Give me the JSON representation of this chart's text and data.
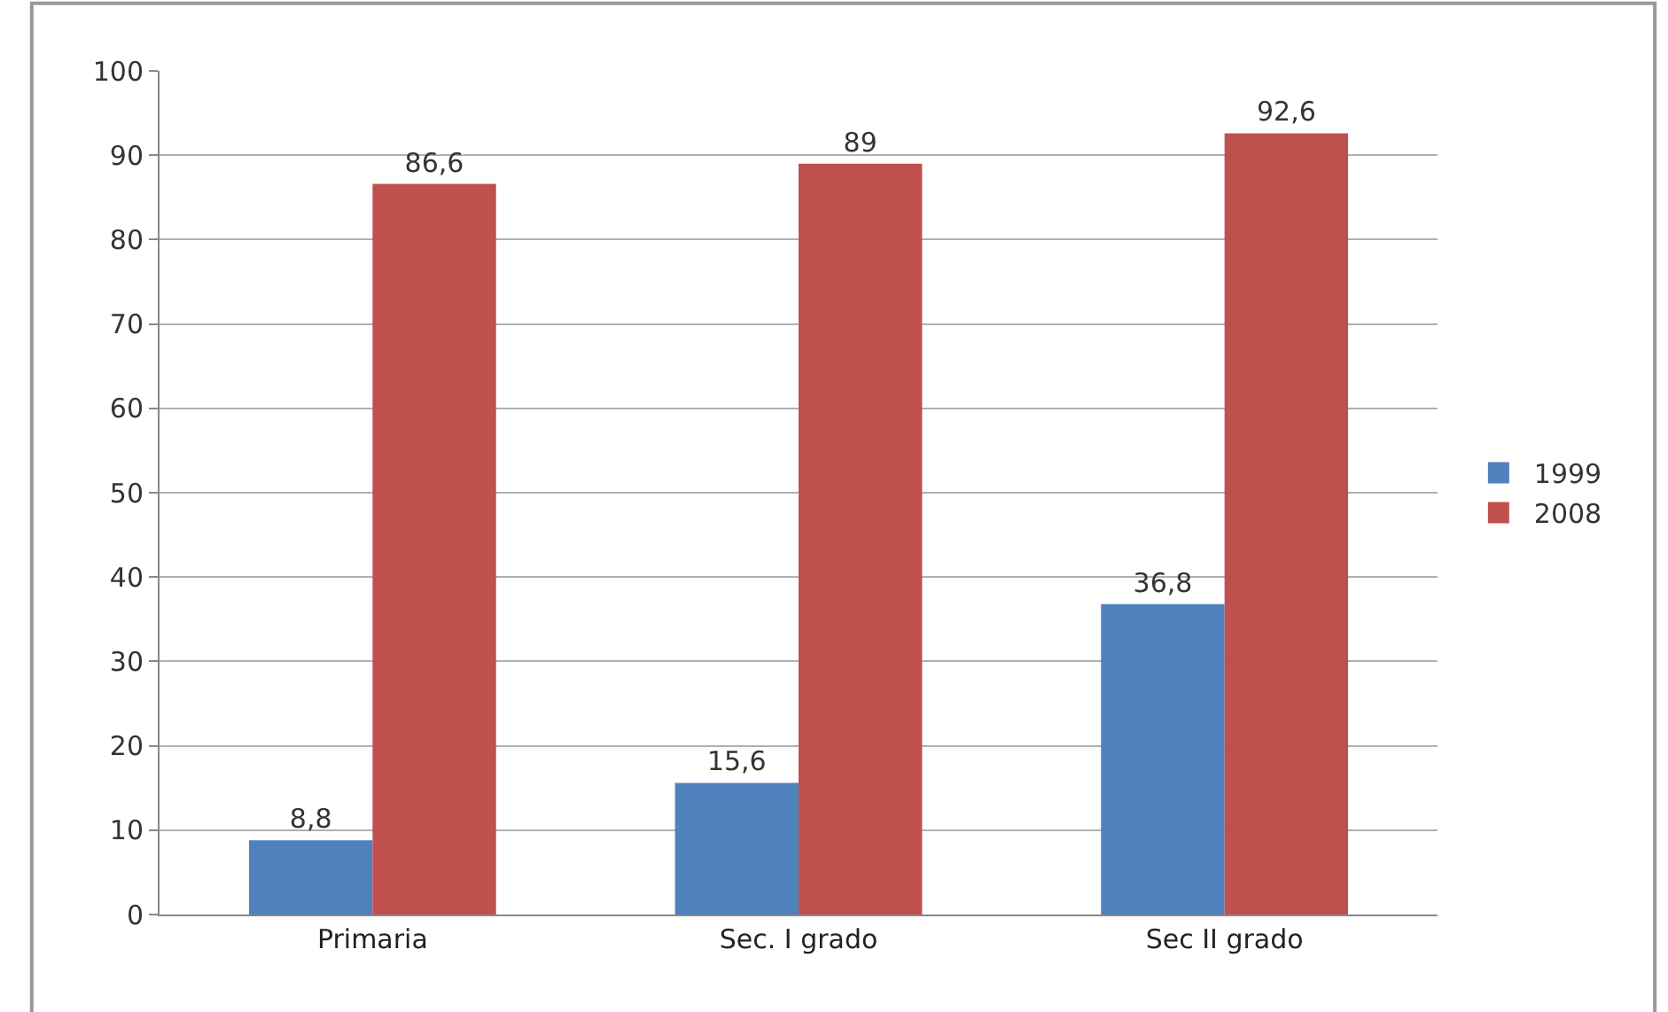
{
  "chart_data": {
    "type": "bar",
    "categories": [
      "Primaria",
      "Sec. I grado",
      "Sec II grado"
    ],
    "series": [
      {
        "name": "1999",
        "color": "#4f81bd",
        "values": [
          8.8,
          15.6,
          36.8
        ],
        "value_labels": [
          "8,8",
          "15,6",
          "36,8"
        ]
      },
      {
        "name": "2008",
        "color": "#c0504d",
        "values": [
          86.6,
          89,
          92.6
        ],
        "value_labels": [
          "86,6",
          "89",
          "92,6"
        ]
      }
    ],
    "ylim": [
      0,
      100
    ],
    "yticks": [
      0,
      10,
      20,
      30,
      40,
      50,
      60,
      70,
      80,
      90,
      100
    ],
    "grid": "y",
    "legend": "right"
  }
}
